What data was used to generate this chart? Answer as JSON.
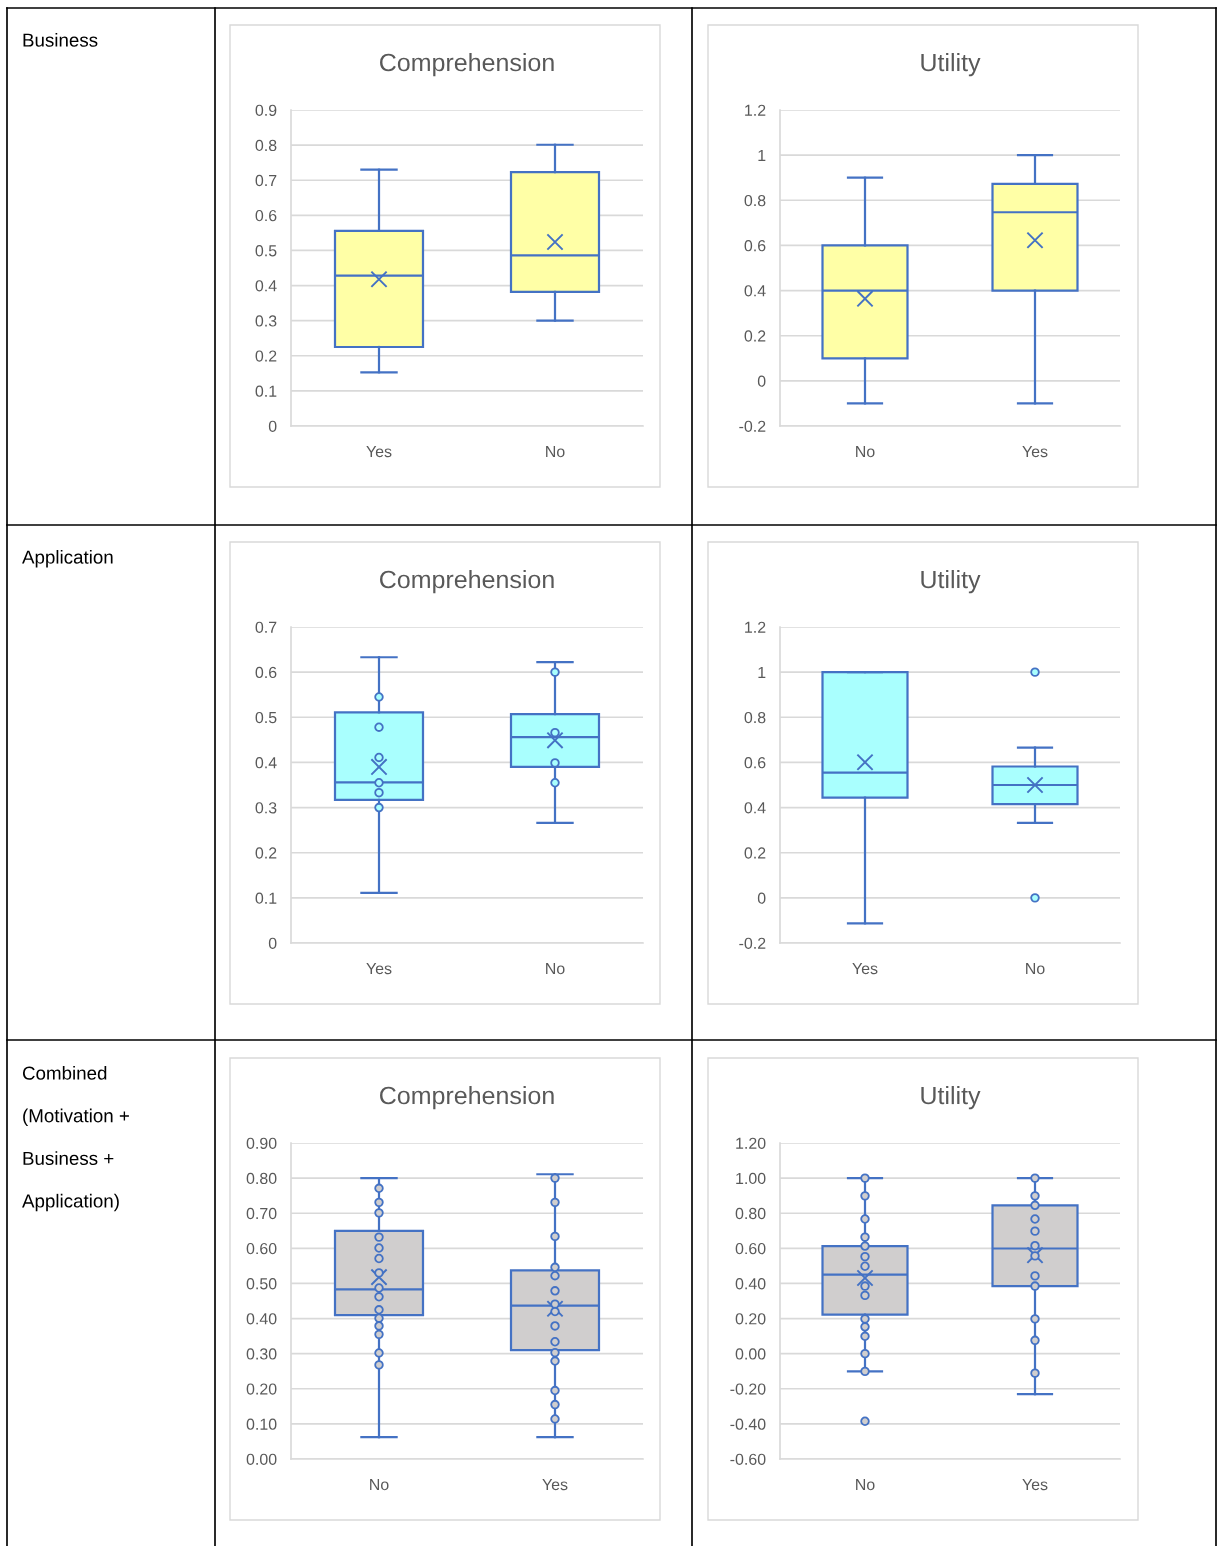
{
  "chart_data": [
    {
      "type": "box",
      "title": "Comprehension",
      "categories": [
        "Yes",
        "No"
      ],
      "ylim": [
        0,
        0.9
      ],
      "yticks": [
        0,
        0.1,
        0.2,
        0.3,
        0.4,
        0.5,
        0.6,
        0.7,
        0.8,
        0.9
      ],
      "grid": "y",
      "annotations": [
        "Business"
      ],
      "series": [
        {
          "color": "#ffffa6",
          "boxes": [
            {
              "low": 0.153,
              "q1": 0.225,
              "median": 0.428,
              "q3": 0.556,
              "high": 0.73,
              "mean": 0.418
            },
            {
              "low": 0.3,
              "q1": 0.382,
              "median": 0.486,
              "q3": 0.723,
              "high": 0.801,
              "mean": 0.524
            }
          ]
        }
      ]
    },
    {
      "type": "box",
      "title": "Utility",
      "categories": [
        "No",
        "Yes"
      ],
      "ylim": [
        -0.2,
        1.2
      ],
      "yticks": [
        -0.2,
        0,
        0.2,
        0.4,
        0.6,
        0.8,
        1,
        1.2
      ],
      "grid": "y",
      "series": [
        {
          "color": "#ffffa6",
          "boxes": [
            {
              "low": -0.1,
              "q1": 0.1,
              "median": 0.4,
              "q3": 0.6,
              "high": 0.9,
              "mean": 0.364
            },
            {
              "low": -0.1,
              "q1": 0.4,
              "median": 0.747,
              "q3": 0.873,
              "high": 1.0,
              "mean": 0.623
            }
          ]
        }
      ]
    },
    {
      "type": "box",
      "title": "Comprehension",
      "categories": [
        "Yes",
        "No"
      ],
      "ylim": [
        0,
        0.7
      ],
      "yticks": [
        0,
        0.1,
        0.2,
        0.3,
        0.4,
        0.5,
        0.6,
        0.7
      ],
      "grid": "y",
      "annotations": [
        "Application"
      ],
      "series": [
        {
          "color": "#a9fffe",
          "boxes": [
            {
              "low": 0.111,
              "q1": 0.317,
              "median": 0.356,
              "q3": 0.511,
              "high": 0.633,
              "mean": 0.39
            },
            {
              "low": 0.266,
              "q1": 0.39,
              "median": 0.456,
              "q3": 0.507,
              "high": 0.622,
              "mean": 0.449
            }
          ]
        },
        {
          "type": "scatter",
          "color": "#4472c4",
          "x": [
            "Yes",
            "Yes",
            "Yes",
            "Yes",
            "Yes",
            "Yes",
            "No",
            "No",
            "No",
            "No"
          ],
          "values": [
            0.545,
            0.478,
            0.411,
            0.355,
            0.333,
            0.3,
            0.6,
            0.466,
            0.399,
            0.355
          ]
        }
      ]
    },
    {
      "type": "box",
      "title": "Utility",
      "categories": [
        "Yes",
        "No"
      ],
      "ylim": [
        -0.2,
        1.2
      ],
      "yticks": [
        -0.2,
        0,
        0.2,
        0.4,
        0.6,
        0.8,
        1,
        1.2
      ],
      "grid": "y",
      "series": [
        {
          "color": "#a9fffe",
          "boxes": [
            {
              "low": -0.113,
              "q1": 0.444,
              "median": 0.555,
              "q3": 1.0,
              "high": 1.0,
              "mean": 0.601
            },
            {
              "low": 0.332,
              "q1": 0.415,
              "median": 0.5,
              "q3": 0.582,
              "high": 0.666,
              "mean": 0.5,
              "outliers": [
                1.0,
                0.0
              ]
            }
          ]
        }
      ]
    },
    {
      "type": "box",
      "title": "Comprehension",
      "categories": [
        "No",
        "Yes"
      ],
      "ylim": [
        0,
        0.9
      ],
      "yticks": [
        {
          "value": 0,
          "label": "0.00"
        },
        {
          "value": 0.1,
          "label": "0.10"
        },
        {
          "value": 0.2,
          "label": "0.20"
        },
        {
          "value": 0.3,
          "label": "0.30"
        },
        {
          "value": 0.4,
          "label": "0.40"
        },
        {
          "value": 0.5,
          "label": "0.50"
        },
        {
          "value": 0.6,
          "label": "0.60"
        },
        {
          "value": 0.7,
          "label": "0.70"
        },
        {
          "value": 0.8,
          "label": "0.80"
        },
        {
          "value": 0.9,
          "label": "0.90"
        }
      ],
      "grid": "y",
      "annotations": [
        "Combined\n(Motivation +\nBusiness +\nApplication)"
      ],
      "series": [
        {
          "color": "#d0cece",
          "boxes": [
            {
              "low": 0.062,
              "q1": 0.41,
              "median": 0.483,
              "q3": 0.65,
              "high": 0.8,
              "mean": 0.518
            },
            {
              "low": 0.062,
              "q1": 0.31,
              "median": 0.437,
              "q3": 0.537,
              "high": 0.811,
              "mean": 0.428
            }
          ]
        },
        {
          "type": "scatter",
          "color": "#4472c4",
          "x": [
            "No",
            "No",
            "No",
            "No",
            "No",
            "No",
            "No",
            "No",
            "No",
            "No",
            "No",
            "No",
            "No",
            "No",
            "No",
            "Yes",
            "Yes",
            "Yes",
            "Yes",
            "Yes",
            "Yes",
            "Yes",
            "Yes",
            "Yes",
            "Yes",
            "Yes",
            "Yes",
            "Yes",
            "Yes",
            "Yes"
          ],
          "values": [
            0.771,
            0.731,
            0.701,
            0.632,
            0.601,
            0.571,
            0.53,
            0.487,
            0.462,
            0.425,
            0.401,
            0.379,
            0.355,
            0.302,
            0.268,
            0.8,
            0.731,
            0.634,
            0.546,
            0.522,
            0.479,
            0.441,
            0.42,
            0.379,
            0.334,
            0.303,
            0.279,
            0.195,
            0.155,
            0.114
          ]
        }
      ]
    },
    {
      "type": "box",
      "title": "Utility",
      "categories": [
        "No",
        "Yes"
      ],
      "ylim": [
        -0.6,
        1.2
      ],
      "yticks": [
        {
          "value": -0.6,
          "label": "-0.60"
        },
        {
          "value": -0.4,
          "label": "-0.40"
        },
        {
          "value": -0.2,
          "label": "-0.20"
        },
        {
          "value": 0,
          "label": "0.00"
        },
        {
          "value": 0.2,
          "label": "0.20"
        },
        {
          "value": 0.4,
          "label": "0.40"
        },
        {
          "value": 0.6,
          "label": "0.60"
        },
        {
          "value": 0.8,
          "label": "0.80"
        },
        {
          "value": 1.0,
          "label": "1.00"
        },
        {
          "value": 1.2,
          "label": "1.20"
        }
      ],
      "grid": "y",
      "series": [
        {
          "color": "#d0cece",
          "boxes": [
            {
              "low": -0.101,
              "q1": 0.223,
              "median": 0.45,
              "q3": 0.613,
              "high": 1.0,
              "mean": 0.431,
              "outliers": [
                -0.385
              ]
            },
            {
              "low": -0.231,
              "q1": 0.385,
              "median": 0.599,
              "q3": 0.845,
              "high": 1.0,
              "mean": 0.561
            }
          ]
        },
        {
          "type": "scatter",
          "color": "#4472c4",
          "x": [
            "No",
            "No",
            "No",
            "No",
            "No",
            "No",
            "No",
            "No",
            "No",
            "No",
            "No",
            "No",
            "No",
            "No",
            "Yes",
            "Yes",
            "Yes",
            "Yes",
            "Yes",
            "Yes",
            "Yes",
            "Yes",
            "Yes",
            "Yes",
            "Yes",
            "Yes"
          ],
          "values": [
            1.0,
            0.899,
            0.767,
            0.664,
            0.613,
            0.553,
            0.498,
            0.385,
            0.332,
            0.198,
            0.153,
            0.099,
            0.0,
            -0.101,
            1.0,
            0.899,
            0.845,
            0.767,
            0.698,
            0.615,
            0.557,
            0.443,
            0.385,
            0.198,
            0.076,
            -0.111
          ]
        }
      ]
    }
  ]
}
